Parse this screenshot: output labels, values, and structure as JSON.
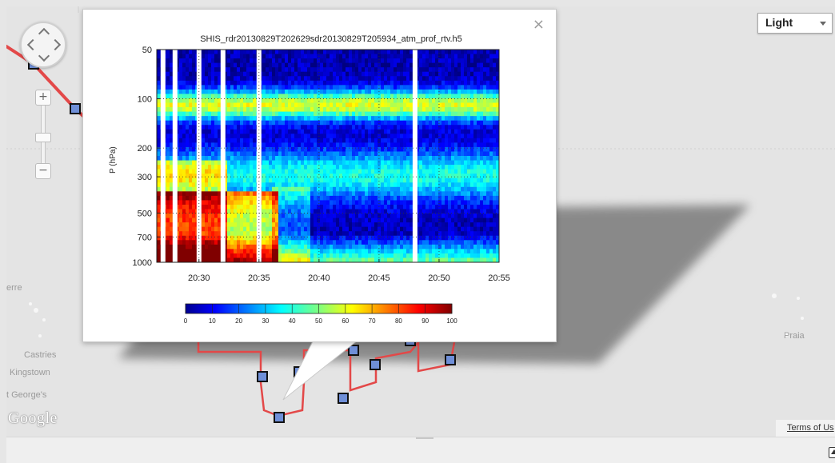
{
  "map": {
    "style_select": {
      "value": "Light"
    },
    "labels": [
      {
        "id": "castries",
        "text": "Castries"
      },
      {
        "id": "kingstown",
        "text": "Kingstown"
      },
      {
        "id": "st-georges",
        "text": "t George's"
      },
      {
        "id": "pierre",
        "text": "erre"
      },
      {
        "id": "praia",
        "text": "Praia"
      }
    ],
    "google_logo": "Google",
    "terms": "Terms of Us",
    "track_color": "#e34848",
    "marker_fill": "#6f8fd8"
  },
  "popup": {
    "close_glyph": "×",
    "chart_data": {
      "type": "heatmap",
      "title": "SHIS_rdr20130829T202629sdr20130829T205934_atm_prof_rtv.h5",
      "ylabel": "P (hPa)",
      "xlabel": "",
      "x_ticks": [
        "20:30",
        "20:35",
        "20:40",
        "20:45",
        "20:50",
        "20:55"
      ],
      "y_ticks": [
        "50",
        "100",
        "200",
        "300",
        "500",
        "700",
        "1000"
      ],
      "y_scale": "log",
      "ylim": [
        1000,
        50
      ],
      "xlim": [
        "20:26:29",
        "20:55"
      ],
      "colorbar": {
        "colormap": "jet",
        "ticks": [
          "0",
          "10",
          "20",
          "30",
          "40",
          "50",
          "60",
          "70",
          "80",
          "90",
          "100"
        ],
        "range": [
          0,
          100
        ]
      },
      "grid": true,
      "gaps_at": [
        "20:27",
        "20:28",
        "20:30",
        "20:32",
        "20:35",
        "20:48"
      ]
    }
  }
}
